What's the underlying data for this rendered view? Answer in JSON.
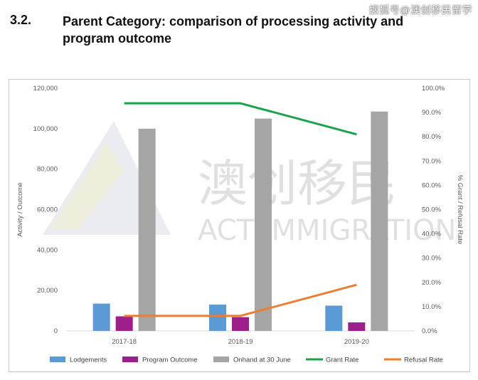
{
  "header": {
    "section_number": "3.2.",
    "title": "Parent Category: comparison of processing activity and program outcome"
  },
  "corner_watermark": "搜狐号@澳创移民留学",
  "watermark": {
    "line1": "澳创移民",
    "line2": "ACT IMMIGRATION"
  },
  "chart_data": {
    "type": "bar",
    "categories": [
      "2017-18",
      "2018-19",
      "2019-20"
    ],
    "series": [
      {
        "name": "Lodgements",
        "kind": "bar",
        "axis": "left",
        "color": "#5b9bd5",
        "values": [
          13500,
          13000,
          12500
        ]
      },
      {
        "name": "Program Outcome",
        "kind": "bar",
        "axis": "left",
        "color": "#9e1e8c",
        "values": [
          7200,
          6800,
          4200
        ]
      },
      {
        "name": "Onhand at 30 June",
        "kind": "bar",
        "axis": "left",
        "color": "#a5a5a5",
        "values": [
          100000,
          105000,
          108500
        ]
      },
      {
        "name": "Grant Rate",
        "kind": "line",
        "axis": "right",
        "color": "#1aa34a",
        "values": [
          93.8,
          93.8,
          81.0
        ]
      },
      {
        "name": "Refusal Rate",
        "kind": "line",
        "axis": "right",
        "color": "#ed7d31",
        "values": [
          6.2,
          6.2,
          19.0
        ]
      }
    ],
    "y_left": {
      "label": "Activity / Outcome",
      "range": [
        0,
        120000
      ],
      "tick_labels": [
        "0",
        "20,000",
        "40,000",
        "60,000",
        "80,000",
        "100,000",
        "120,000"
      ],
      "tick_values": [
        0,
        20000,
        40000,
        60000,
        80000,
        100000,
        120000
      ]
    },
    "y_right": {
      "label": "% Grant / Refusal Rate",
      "range": [
        0,
        100
      ],
      "tick_labels": [
        "0.0%",
        "10.0%",
        "20.0%",
        "30.0%",
        "40.0%",
        "50.0%",
        "60.0%",
        "70.0%",
        "80.0%",
        "90.0%",
        "100.0%"
      ],
      "tick_values": [
        0,
        10,
        20,
        30,
        40,
        50,
        60,
        70,
        80,
        90,
        100
      ]
    },
    "grid": false,
    "legend": "bottom"
  }
}
